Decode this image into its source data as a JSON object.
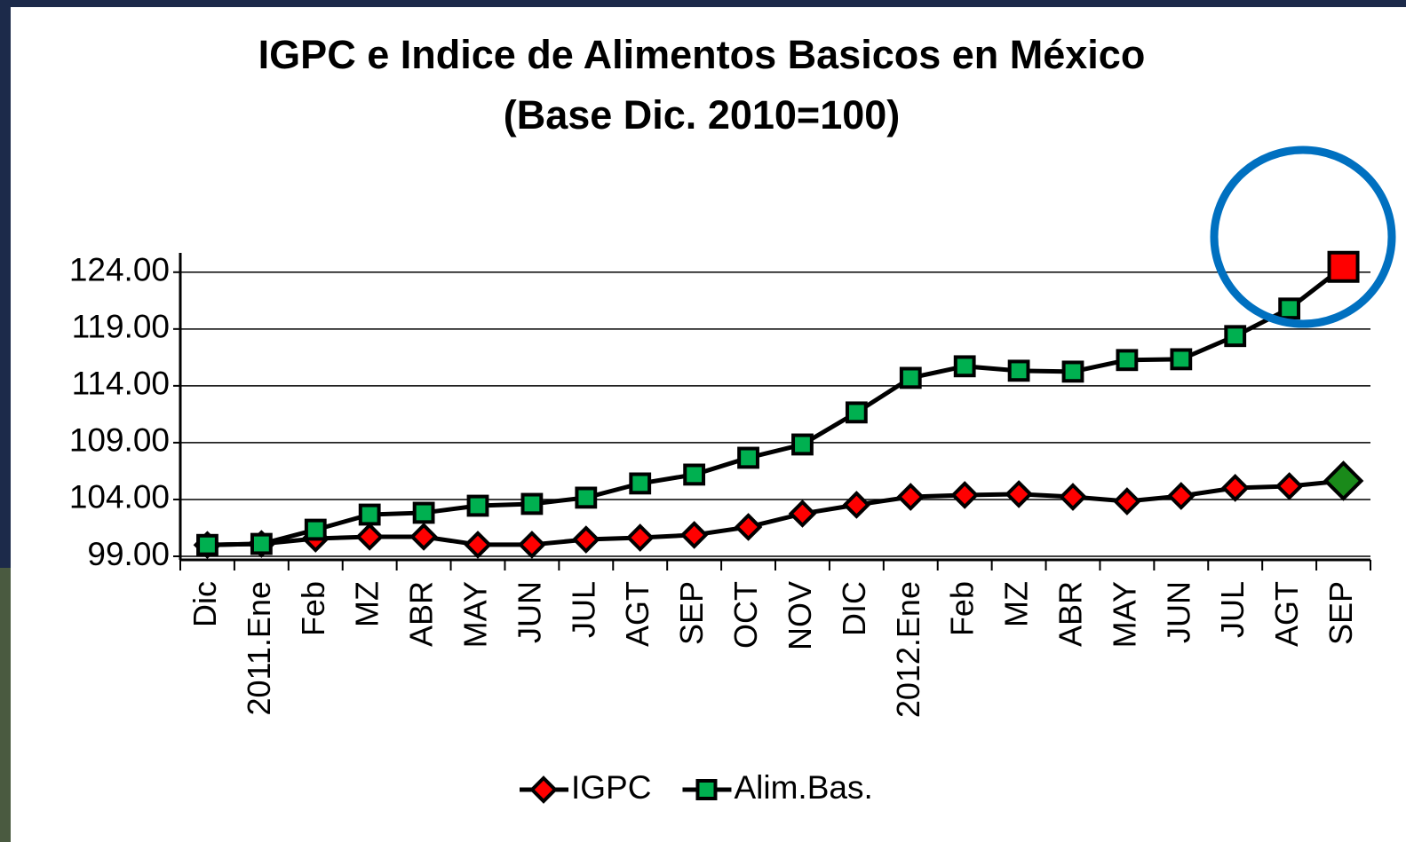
{
  "chart_data": {
    "type": "line",
    "title": "IGPC e Indice de Alimentos Basicos en México",
    "subtitle": "(Base Dic. 2010=100)",
    "categories": [
      "Dic",
      "2011.Ene",
      "Feb",
      "MZ",
      "ABR",
      "MAY",
      "JUN",
      "JUL",
      "AGT",
      "SEP",
      "OCT",
      "NOV",
      "DIC",
      "2012.Ene",
      "Feb",
      "MZ",
      "ABR",
      "MAY",
      "JUN",
      "JUL",
      "AGT",
      "SEP"
    ],
    "series": [
      {
        "name": "IGPC",
        "color": "#ff0000",
        "marker": "diamond",
        "highlight_color": "#1a8a1a",
        "values": [
          100,
          100.09,
          100.56,
          100.72,
          100.72,
          100.02,
          100.02,
          100.48,
          100.64,
          100.88,
          101.58,
          102.75,
          103.53,
          104.23,
          104.39,
          104.47,
          104.23,
          103.84,
          104.31,
          105.02,
          105.17,
          105.64
        ]
      },
      {
        "name": "Alim.Bas.",
        "color": "#00b050",
        "marker": "square",
        "highlight_color": "#ff0000",
        "values": [
          100,
          100.09,
          101.34,
          102.67,
          102.83,
          103.45,
          103.61,
          104.16,
          105.41,
          106.19,
          107.67,
          108.84,
          111.66,
          114.7,
          115.72,
          115.33,
          115.25,
          116.27,
          116.34,
          118.38,
          120.8,
          124.47
        ]
      }
    ],
    "ylim": [
      99,
      125.7
    ],
    "yticks": [
      {
        "value": 99,
        "label": "99.00"
      },
      {
        "value": 104,
        "label": "104.00"
      },
      {
        "value": 109,
        "label": "109.00"
      },
      {
        "value": 114,
        "label": "114.00"
      },
      {
        "value": 119,
        "label": "119.00"
      },
      {
        "value": 124,
        "label": "124.00"
      }
    ],
    "grid": true,
    "legend": "bottom"
  }
}
